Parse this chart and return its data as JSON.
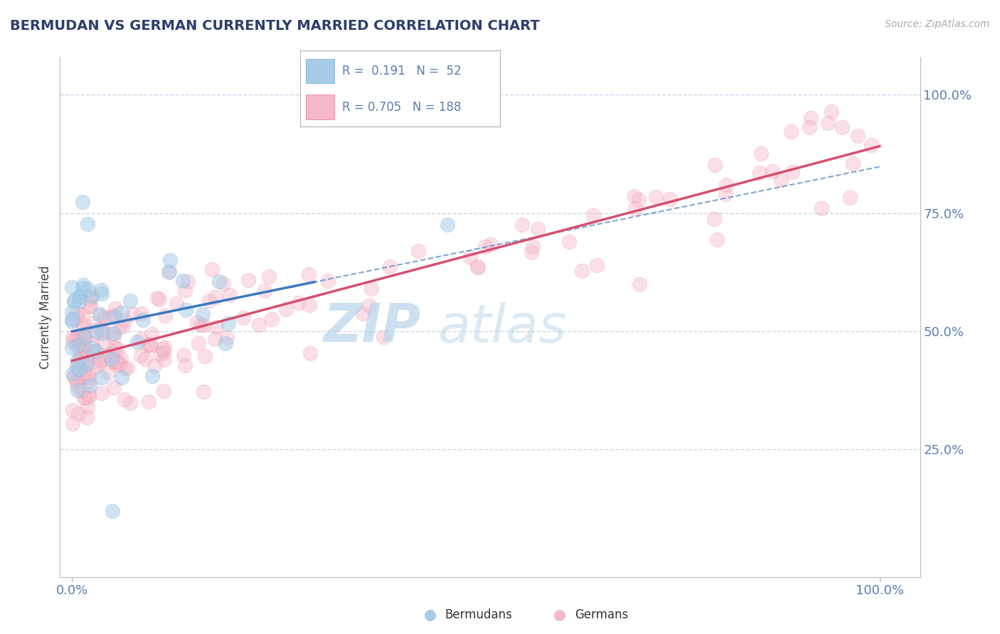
{
  "title": "BERMUDAN VS GERMAN CURRENTLY MARRIED CORRELATION CHART",
  "source_text": "Source: ZipAtlas.com",
  "ylabel": "Currently Married",
  "watermark_zip": "ZIP",
  "watermark_atlas": "atlas",
  "r_bermudan": 0.191,
  "n_bermudan": 52,
  "r_german": 0.705,
  "n_german": 188,
  "bermudan_color": "#a8cce8",
  "bermudan_edge": "#6aaad4",
  "german_color": "#f5b8c8",
  "german_edge": "#e87090",
  "bermudan_line_color": "#3a7abf",
  "german_line_color": "#d45070",
  "title_color": "#2c3e6b",
  "tick_color": "#5b7db1",
  "grid_color": "#c8d8e8",
  "background_color": "#ffffff",
  "xlim": [
    0,
    100
  ],
  "ylim": [
    0,
    100
  ],
  "x_display_max": 10
}
